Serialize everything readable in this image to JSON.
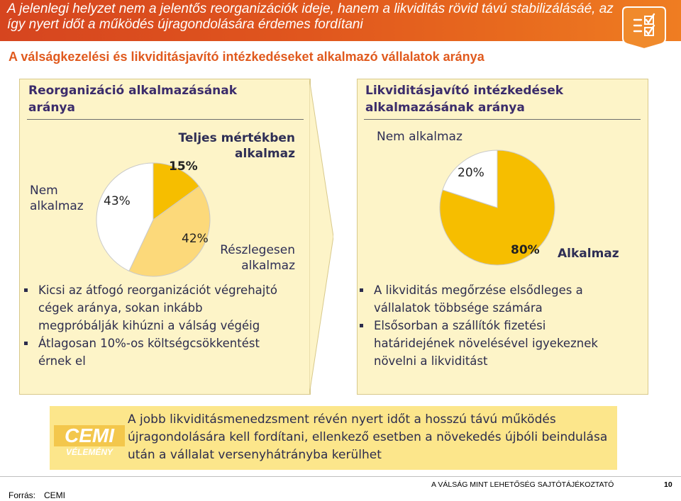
{
  "header": {
    "title": "A jelenlegi helyzet nem a jelentős reorganizációk ideje, hanem a likviditás rövid távú stabilizálásáé, az így nyert időt a működés újragondolására érdemes fordítani",
    "icon": "checklist-icon"
  },
  "subtitle": "A válságkezelési és likviditásjavító intézkedéseket alkalmazó vállalatok aránya",
  "colors": {
    "accent": "#e05a1e",
    "slice_full": "#f6be00",
    "slice_partial": "#fcd97a",
    "slice_none": "#ffffff",
    "panel_bg": "#fdf4c8"
  },
  "left_panel": {
    "title_line1": "Reorganizáció alkalmazásának",
    "title_line2": "aránya",
    "label_full_1": "Teljes mértékben",
    "label_full_2": "alkalmaz",
    "label_none_1": "Nem",
    "label_none_2": "alkalmaz",
    "label_partial_1": "Részlegesen",
    "label_partial_2": "alkalmaz",
    "pct_full": "15%",
    "pct_partial": "42%",
    "pct_none": "43%",
    "bullets": [
      "Kicsi az átfogó reorganizációt végrehajtó cégek aránya, sokan inkább megpróbálják kihúzni a válság végéig",
      "Átlagosan 10%-os költségcsökkentést érnek el"
    ]
  },
  "right_panel": {
    "title_line1": "Likviditásjavító intézkedések",
    "title_line2": "alkalmazásának aránya",
    "label_none": "Nem alkalmaz",
    "label_apply": "Alkalmaz",
    "pct_none": "20%",
    "pct_apply": "80%",
    "bullets": [
      "A likviditás megőrzése elsődleges a vállalatok többsége számára",
      "Elsősorban a szállítók fizetési határidejének növelésével igyekeznek növelni a likviditást"
    ]
  },
  "chart_data": [
    {
      "type": "pie",
      "title": "Reorganizáció alkalmazásának aránya",
      "categories": [
        "Teljes mértékben alkalmaz",
        "Részlegesen alkalmaz",
        "Nem alkalmaz"
      ],
      "values": [
        15,
        42,
        43
      ],
      "colors": [
        "#f6be00",
        "#fcd97a",
        "#ffffff"
      ]
    },
    {
      "type": "pie",
      "title": "Likviditásjavító intézkedések alkalmazásának aránya",
      "categories": [
        "Alkalmaz",
        "Nem alkalmaz"
      ],
      "values": [
        80,
        20
      ],
      "colors": [
        "#f6be00",
        "#ffffff"
      ]
    }
  ],
  "cemi": {
    "logo_text": "CEMI",
    "logo_sub": "VÉLEMÉNY",
    "text": "A jobb likviditásmenedzsment révén nyert időt a hosszú távú működés újragondolására kell fordítani, ellenkező esetben a növekedés újbóli beindulása után a vállalat versenyhátrányba kerülhet"
  },
  "footer": {
    "title": "A VÁLSÁG MINT LEHETŐSÉG SAJTÓTÁJÉKOZTATÓ",
    "page": "10",
    "source_label": "Forrás:",
    "source_value": "CEMI"
  }
}
